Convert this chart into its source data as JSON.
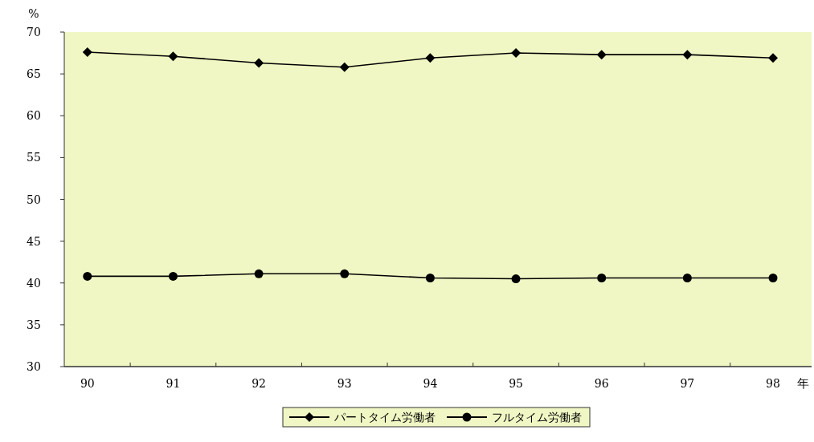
{
  "chart_data": {
    "type": "line",
    "xlabel": "年",
    "ylabel": "%",
    "categories": [
      "90",
      "91",
      "92",
      "93",
      "94",
      "95",
      "96",
      "97",
      "98"
    ],
    "series": [
      {
        "name": "パートタイム労働者",
        "color": "#000000",
        "marker": "diamond",
        "values": [
          67.6,
          67.1,
          66.3,
          65.8,
          66.9,
          67.5,
          67.3,
          67.3,
          66.9
        ]
      },
      {
        "name": "フルタイム労働者",
        "color": "#000000",
        "marker": "circle",
        "values": [
          40.8,
          40.8,
          41.1,
          41.1,
          40.6,
          40.5,
          40.6,
          40.6,
          40.6
        ]
      }
    ],
    "ylim": [
      30,
      70
    ],
    "yticks": [
      30,
      35,
      40,
      45,
      50,
      55,
      60,
      65,
      70
    ],
    "grid": false,
    "legend": "bottom"
  }
}
